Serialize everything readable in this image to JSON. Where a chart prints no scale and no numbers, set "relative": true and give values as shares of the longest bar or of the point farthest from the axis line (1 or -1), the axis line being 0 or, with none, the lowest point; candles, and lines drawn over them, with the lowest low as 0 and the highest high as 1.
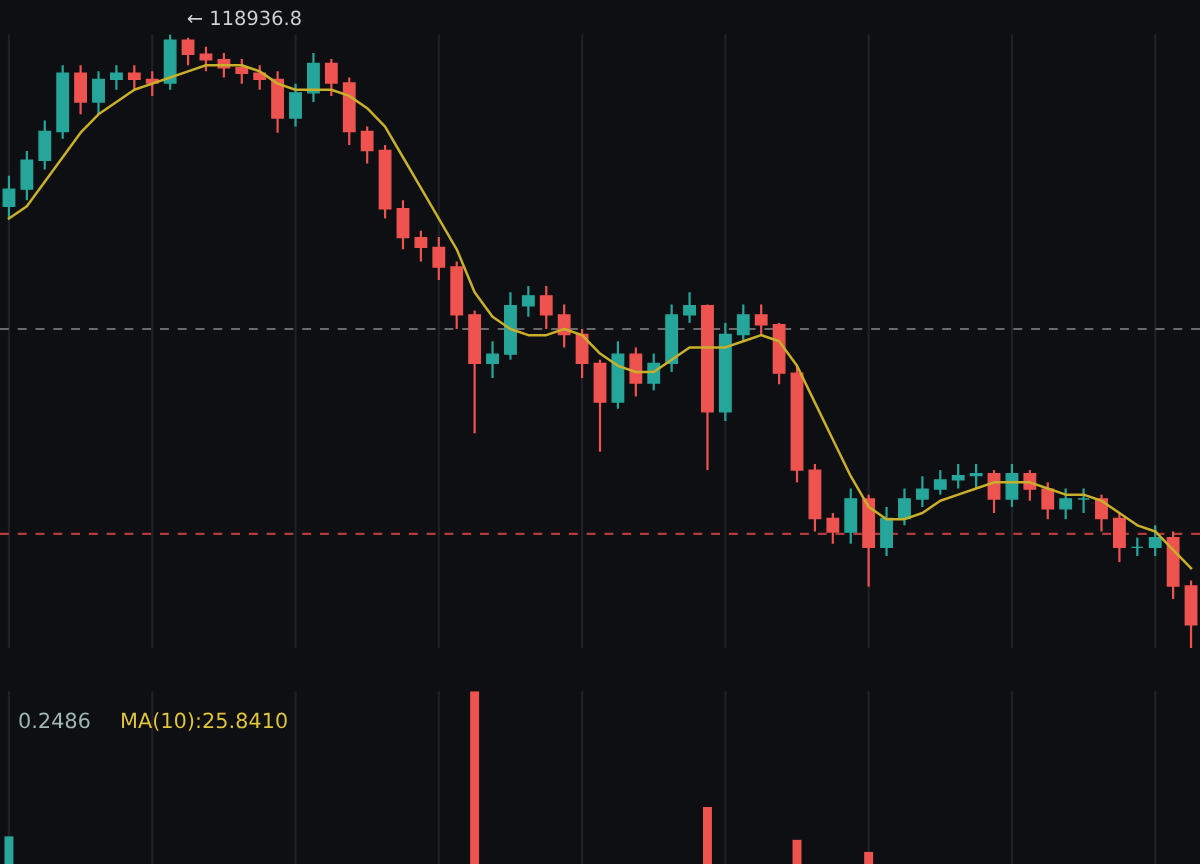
{
  "chart_data": [
    {
      "type": "candlestick",
      "relative": true,
      "grid": true,
      "categories": [
        null,
        null,
        null,
        null,
        null,
        null,
        null,
        null,
        null,
        null,
        null,
        null,
        null,
        null,
        null,
        null,
        null,
        null,
        null,
        null,
        null,
        null,
        null,
        null,
        null,
        null,
        null,
        null,
        null,
        null,
        null,
        null,
        null,
        null,
        null,
        null,
        null,
        null,
        null,
        null,
        null,
        null,
        null,
        null,
        null,
        null,
        null,
        null,
        null,
        null,
        null,
        null,
        null,
        null,
        null,
        null,
        null,
        null,
        null,
        null,
        null,
        null,
        null,
        null,
        null,
        null,
        null
      ],
      "ohlc": [
        [
          0.72,
          0.77,
          0.7,
          0.748
        ],
        [
          0.748,
          0.81,
          0.73,
          0.795
        ],
        [
          0.795,
          0.86,
          0.78,
          0.842
        ],
        [
          0.842,
          0.95,
          0.83,
          0.937
        ],
        [
          0.937,
          0.95,
          0.87,
          0.89
        ],
        [
          0.89,
          0.94,
          0.87,
          0.927
        ],
        [
          0.927,
          0.95,
          0.91,
          0.937
        ],
        [
          0.937,
          0.95,
          0.91,
          0.927
        ],
        [
          0.927,
          0.94,
          0.9,
          0.921
        ],
        [
          0.921,
          1.0,
          0.91,
          0.991
        ],
        [
          0.991,
          0.995,
          0.95,
          0.968
        ],
        [
          0.968,
          0.98,
          0.94,
          0.959
        ],
        [
          0.959,
          0.97,
          0.93,
          0.946
        ],
        [
          0.946,
          0.96,
          0.92,
          0.937
        ],
        [
          0.937,
          0.95,
          0.91,
          0.927
        ],
        [
          0.927,
          0.94,
          0.84,
          0.864
        ],
        [
          0.864,
          0.92,
          0.85,
          0.905
        ],
        [
          0.905,
          0.97,
          0.89,
          0.953
        ],
        [
          0.953,
          0.96,
          0.9,
          0.921
        ],
        [
          0.921,
          0.93,
          0.82,
          0.842
        ],
        [
          0.842,
          0.85,
          0.79,
          0.811
        ],
        [
          0.811,
          0.82,
          0.7,
          0.716
        ],
        [
          0.716,
          0.73,
          0.65,
          0.669
        ],
        [
          0.669,
          0.68,
          0.63,
          0.653
        ],
        [
          0.653,
          0.67,
          0.6,
          0.621
        ],
        [
          0.621,
          0.63,
          0.52,
          0.543
        ],
        [
          0.543,
          0.55,
          0.35,
          0.464
        ],
        [
          0.464,
          0.5,
          0.44,
          0.479
        ],
        [
          0.479,
          0.58,
          0.47,
          0.558
        ],
        [
          0.558,
          0.59,
          0.54,
          0.574
        ],
        [
          0.574,
          0.59,
          0.52,
          0.543
        ],
        [
          0.543,
          0.56,
          0.49,
          0.511
        ],
        [
          0.511,
          0.52,
          0.44,
          0.464
        ],
        [
          0.464,
          0.47,
          0.32,
          0.401
        ],
        [
          0.401,
          0.5,
          0.39,
          0.479
        ],
        [
          0.479,
          0.49,
          0.41,
          0.432
        ],
        [
          0.432,
          0.48,
          0.42,
          0.464
        ],
        [
          0.464,
          0.56,
          0.45,
          0.543
        ],
        [
          0.543,
          0.58,
          0.53,
          0.558
        ],
        [
          0.558,
          0.56,
          0.29,
          0.385
        ],
        [
          0.385,
          0.53,
          0.37,
          0.511
        ],
        [
          0.511,
          0.56,
          0.5,
          0.543
        ],
        [
          0.543,
          0.56,
          0.51,
          0.527
        ],
        [
          0.527,
          0.53,
          0.43,
          0.448
        ],
        [
          0.448,
          0.46,
          0.27,
          0.29
        ],
        [
          0.29,
          0.3,
          0.19,
          0.211
        ],
        [
          0.211,
          0.22,
          0.17,
          0.189
        ],
        [
          0.189,
          0.26,
          0.17,
          0.243
        ],
        [
          0.243,
          0.25,
          0.1,
          0.164
        ],
        [
          0.164,
          0.23,
          0.15,
          0.211
        ],
        [
          0.211,
          0.26,
          0.2,
          0.243
        ],
        [
          0.243,
          0.28,
          0.23,
          0.259
        ],
        [
          0.259,
          0.29,
          0.25,
          0.274
        ],
        [
          0.274,
          0.3,
          0.26,
          0.281
        ],
        [
          0.281,
          0.3,
          0.26,
          0.284
        ],
        [
          0.284,
          0.29,
          0.22,
          0.243
        ],
        [
          0.243,
          0.3,
          0.23,
          0.284
        ],
        [
          0.284,
          0.29,
          0.24,
          0.259
        ],
        [
          0.259,
          0.27,
          0.21,
          0.227
        ],
        [
          0.227,
          0.26,
          0.21,
          0.243
        ],
        [
          0.243,
          0.26,
          0.22,
          0.243
        ],
        [
          0.243,
          0.25,
          0.19,
          0.211
        ],
        [
          0.211,
          0.22,
          0.14,
          0.164
        ],
        [
          0.164,
          0.18,
          0.15,
          0.164
        ],
        [
          0.164,
          0.2,
          0.15,
          0.18
        ],
        [
          0.18,
          0.19,
          0.08,
          0.101
        ],
        [
          0.101,
          0.11,
          0.0,
          0.038
        ]
      ],
      "series": [
        {
          "type": "line",
          "color": "#c9b02a",
          "values": [
            0.7,
            0.72,
            0.76,
            0.8,
            0.84,
            0.87,
            0.89,
            0.91,
            0.92,
            0.93,
            0.94,
            0.95,
            0.95,
            0.95,
            0.94,
            0.92,
            0.91,
            0.91,
            0.91,
            0.9,
            0.88,
            0.85,
            0.8,
            0.75,
            0.7,
            0.65,
            0.58,
            0.54,
            0.52,
            0.51,
            0.51,
            0.52,
            0.51,
            0.48,
            0.46,
            0.45,
            0.45,
            0.47,
            0.49,
            0.49,
            0.49,
            0.5,
            0.51,
            0.5,
            0.46,
            0.4,
            0.34,
            0.28,
            0.23,
            0.21,
            0.21,
            0.22,
            0.24,
            0.25,
            0.26,
            0.27,
            0.27,
            0.27,
            0.26,
            0.25,
            0.25,
            0.24,
            0.22,
            0.2,
            0.19,
            0.16,
            0.13
          ]
        }
      ],
      "ref_lines": [
        {
          "axis": "y",
          "value": 0.52,
          "color": "#6b6b6b",
          "line_style": "dashed"
        },
        {
          "axis": "y",
          "value": 0.186,
          "color": "#b23b3b",
          "line_style": "dashed"
        }
      ],
      "annotations": [
        "← 118936.8"
      ]
    },
    {
      "type": "bar",
      "relative": true,
      "grid": true,
      "categories": [
        null,
        null,
        null,
        null,
        null,
        null,
        null,
        null,
        null,
        null,
        null,
        null,
        null,
        null,
        null,
        null,
        null,
        null,
        null,
        null,
        null,
        null,
        null,
        null,
        null,
        null,
        null,
        null,
        null,
        null,
        null,
        null,
        null,
        null,
        null,
        null,
        null,
        null,
        null,
        null,
        null,
        null,
        null,
        null,
        null,
        null,
        null,
        null,
        null,
        null,
        null,
        null,
        null,
        null,
        null,
        null,
        null,
        null,
        null,
        null,
        null,
        null,
        null,
        null,
        null,
        null,
        null
      ],
      "values": [
        0.16,
        null,
        null,
        null,
        null,
        null,
        null,
        null,
        null,
        null,
        null,
        null,
        null,
        null,
        null,
        null,
        null,
        null,
        null,
        null,
        null,
        null,
        null,
        null,
        null,
        null,
        1.0,
        null,
        null,
        null,
        null,
        null,
        null,
        null,
        null,
        null,
        null,
        null,
        null,
        0.33,
        null,
        null,
        null,
        null,
        0.14,
        null,
        null,
        null,
        0.07,
        null,
        null,
        null,
        null,
        null,
        null,
        null,
        null,
        null,
        null,
        null,
        null,
        null,
        null,
        null,
        null,
        null,
        null
      ],
      "colors": [
        "#26a69a",
        null,
        null,
        null,
        null,
        null,
        null,
        null,
        null,
        null,
        null,
        null,
        null,
        null,
        null,
        null,
        null,
        null,
        null,
        null,
        null,
        null,
        null,
        null,
        null,
        null,
        "#ef5350",
        null,
        null,
        null,
        null,
        null,
        null,
        null,
        null,
        null,
        null,
        null,
        null,
        "#ef5350",
        null,
        null,
        null,
        null,
        "#ef5350",
        null,
        null,
        null,
        "#ef5350",
        null,
        null,
        null,
        null,
        null,
        null,
        null,
        null,
        null,
        null,
        null,
        null,
        null,
        null,
        null,
        null,
        null,
        null
      ],
      "annotations": [
        "0.2486",
        "MA(10):25.8410"
      ]
    }
  ]
}
